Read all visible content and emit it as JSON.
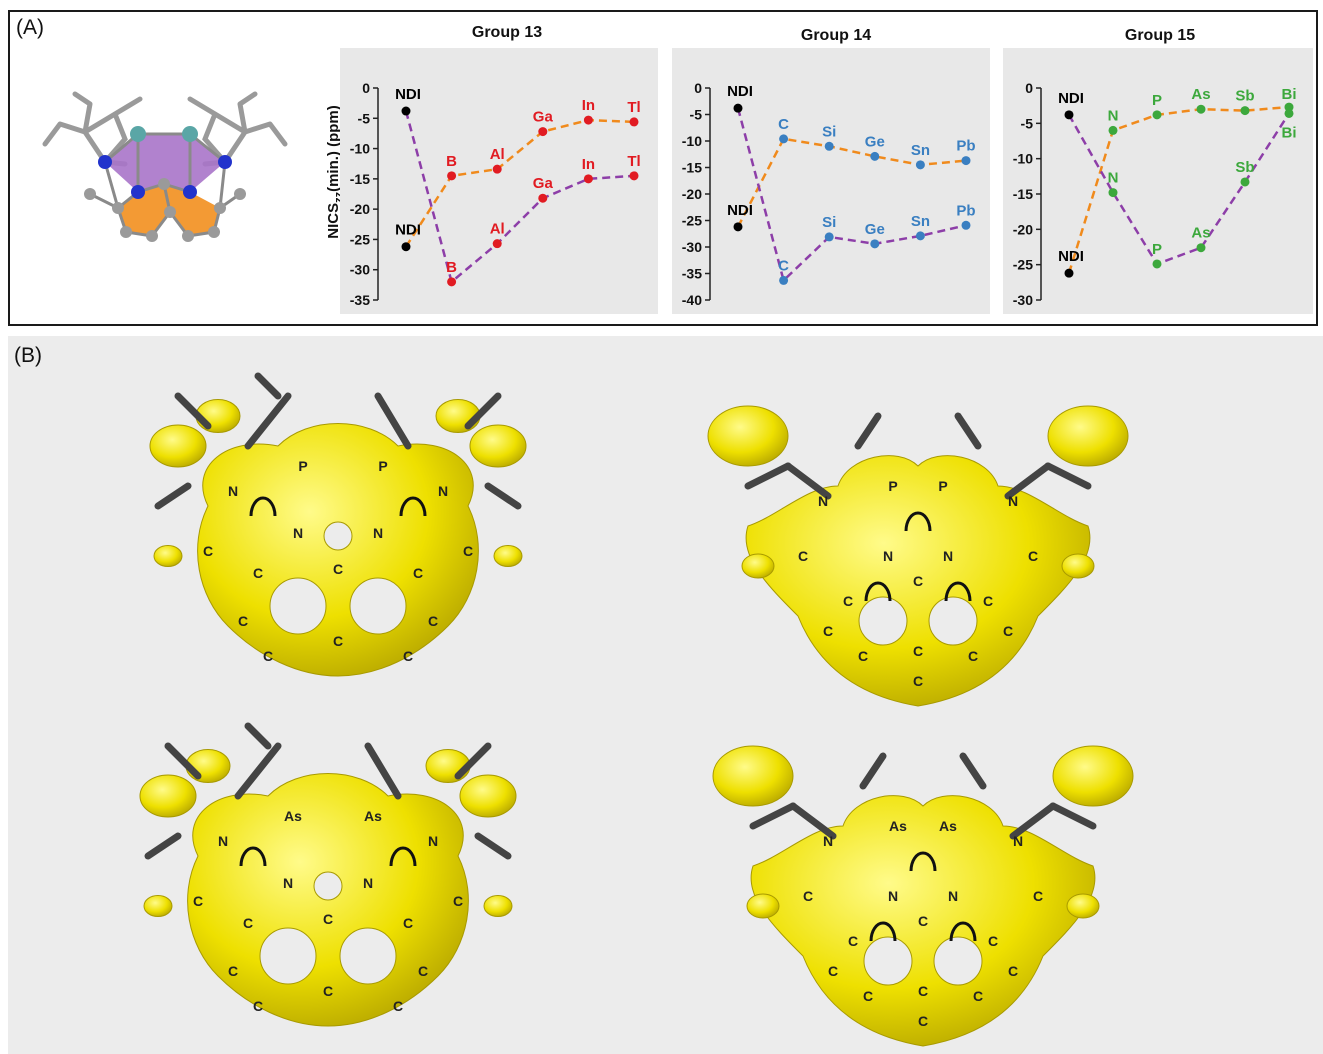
{
  "panel_labels": {
    "a": "(A)",
    "b": "(B)"
  },
  "y_axis_label": "NICS",
  "y_axis_label_sub": "zz",
  "y_axis_label_rest": "(min.) (ppm)",
  "colors": {
    "group13": "#e11b22",
    "group14": "#3a7fc1",
    "group15": "#3ca83c",
    "orange_line": "#f08a1c",
    "purple_line": "#8d3ea8",
    "ndi": "#000000",
    "isosurface": "#f2e600"
  },
  "chart_data": [
    {
      "type": "line",
      "title": "Group 13",
      "ylim": [
        -35,
        0
      ],
      "yticks": [
        0,
        -5,
        -10,
        -15,
        -20,
        -25,
        -30,
        -35
      ],
      "series": [
        {
          "points": [
            {
              "label": "NDI",
              "x": 0,
              "y": -26.2
            },
            {
              "label": "B",
              "x": 1,
              "y": -14.5
            },
            {
              "label": "Al",
              "x": 2,
              "y": -13.4
            },
            {
              "label": "Ga",
              "x": 3,
              "y": -7.2
            },
            {
              "label": "In",
              "x": 4,
              "y": -5.3
            },
            {
              "label": "Tl",
              "x": 5,
              "y": -5.6
            }
          ]
        },
        {
          "points": [
            {
              "label": "NDI",
              "x": 0,
              "y": -3.8
            },
            {
              "label": "B",
              "x": 1,
              "y": -32.0
            },
            {
              "label": "Al",
              "x": 2,
              "y": -25.7
            },
            {
              "label": "Ga",
              "x": 3,
              "y": -18.2
            },
            {
              "label": "In",
              "x": 4,
              "y": -15.0
            },
            {
              "label": "Tl",
              "x": 5,
              "y": -14.5
            }
          ]
        }
      ]
    },
    {
      "type": "line",
      "title": "Group 14",
      "ylim": [
        -40,
        0
      ],
      "yticks": [
        0,
        -5,
        -10,
        -15,
        -20,
        -25,
        -30,
        -35,
        -40
      ],
      "series": [
        {
          "points": [
            {
              "label": "NDI",
              "x": 0,
              "y": -26.2
            },
            {
              "label": "C",
              "x": 1,
              "y": -9.6
            },
            {
              "label": "Si",
              "x": 2,
              "y": -11.0
            },
            {
              "label": "Ge",
              "x": 3,
              "y": -12.9
            },
            {
              "label": "Sn",
              "x": 4,
              "y": -14.5
            },
            {
              "label": "Pb",
              "x": 5,
              "y": -13.7
            }
          ]
        },
        {
          "points": [
            {
              "label": "NDI",
              "x": 0,
              "y": -3.8
            },
            {
              "label": "C",
              "x": 1,
              "y": -36.3
            },
            {
              "label": "Si",
              "x": 2,
              "y": -28.1
            },
            {
              "label": "Ge",
              "x": 3,
              "y": -29.4
            },
            {
              "label": "Sn",
              "x": 4,
              "y": -27.9
            },
            {
              "label": "Pb",
              "x": 5,
              "y": -25.9
            }
          ]
        }
      ]
    },
    {
      "type": "line",
      "title": "Group 15",
      "ylim": [
        -30,
        0
      ],
      "yticks": [
        0,
        -5,
        -10,
        -15,
        -20,
        -25,
        -30
      ],
      "series": [
        {
          "points": [
            {
              "label": "NDI",
              "x": 0,
              "y": -26.2
            },
            {
              "label": "N",
              "x": 1,
              "y": -6.0
            },
            {
              "label": "P",
              "x": 2,
              "y": -3.8
            },
            {
              "label": "As",
              "x": 3,
              "y": -3.0
            },
            {
              "label": "Sb",
              "x": 4,
              "y": -3.2
            },
            {
              "label": "Bi",
              "x": 5,
              "y": -2.7
            }
          ]
        },
        {
          "points": [
            {
              "label": "NDI",
              "x": 0,
              "y": -3.8
            },
            {
              "label": "N",
              "x": 1,
              "y": -14.8
            },
            {
              "label": "P",
              "x": 2,
              "y": -24.9
            },
            {
              "label": "As",
              "x": 3,
              "y": -22.6
            },
            {
              "label": "Sb",
              "x": 4,
              "y": -13.3
            },
            {
              "label": "Bi",
              "x": 5,
              "y": -3.6
            }
          ]
        }
      ]
    }
  ],
  "molecules": [
    {
      "labels": [
        "P",
        "P",
        "N",
        "N",
        "N",
        "N",
        "C",
        "C",
        "C",
        "C",
        "C",
        "C",
        "C",
        "C",
        "C",
        "C"
      ]
    },
    {
      "labels": [
        "P",
        "P",
        "N",
        "N",
        "N",
        "N",
        "C",
        "C",
        "C",
        "C",
        "C",
        "C",
        "C",
        "C",
        "C",
        "C",
        "C"
      ]
    },
    {
      "labels": [
        "As",
        "As",
        "N",
        "N",
        "N",
        "N",
        "C",
        "C",
        "C",
        "C",
        "C",
        "C",
        "C",
        "C",
        "C",
        "C"
      ]
    },
    {
      "labels": [
        "As",
        "As",
        "N",
        "N",
        "N",
        "N",
        "C",
        "C",
        "C",
        "C",
        "C",
        "C",
        "C",
        "C",
        "C",
        "C",
        "C"
      ]
    }
  ]
}
